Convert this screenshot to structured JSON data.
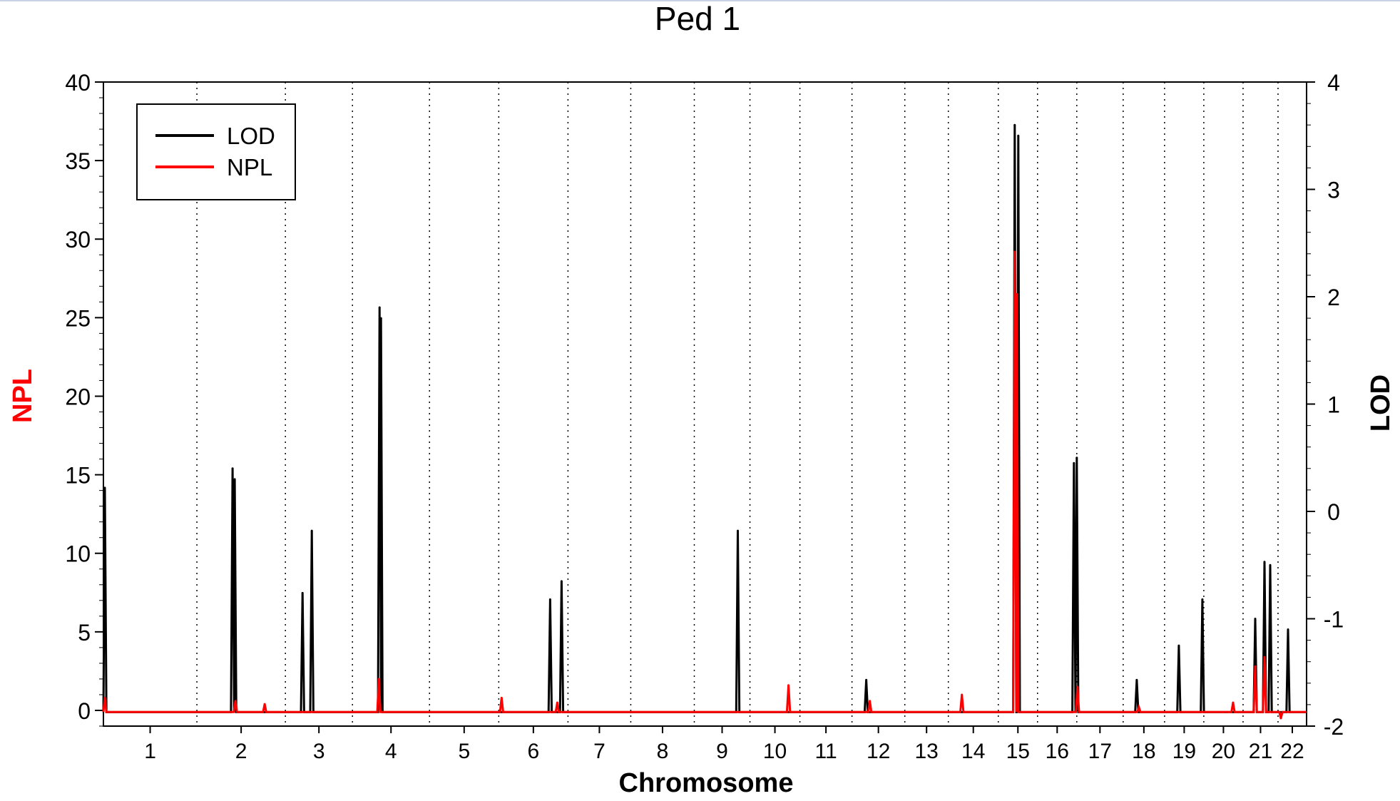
{
  "chart_data": {
    "type": "line",
    "title": "Ped 1",
    "xlabel": "Chromosome",
    "ylabel_left": "NPL",
    "ylabel_right": "LOD",
    "ylabel_left_color": "#ff0000",
    "ylabel_right_color": "#000000",
    "x_range": [
      0,
      1686
    ],
    "ylim_left": [
      -1,
      40
    ],
    "ylim_right": [
      -2,
      4
    ],
    "yticks_left": [
      0,
      5,
      10,
      15,
      20,
      25,
      30,
      35,
      40
    ],
    "yticks_right": [
      -2,
      -1,
      0,
      1,
      2,
      3,
      4
    ],
    "grid": "vertical dotted chromosome boundaries",
    "legend_position": "top-left",
    "chromosomes": [
      "1",
      "2",
      "3",
      "4",
      "5",
      "6",
      "7",
      "8",
      "9",
      "10",
      "11",
      "12",
      "13",
      "14",
      "15",
      "16",
      "17",
      "18",
      "19",
      "20",
      "21",
      "22"
    ],
    "chromosome_bounds": [
      0,
      131,
      255,
      349,
      457,
      554,
      651,
      739,
      828,
      906,
      976,
      1049,
      1123,
      1184,
      1254,
      1309,
      1364,
      1429,
      1487,
      1542,
      1597,
      1646,
      1686
    ],
    "series": [
      {
        "name": "LOD",
        "axis": "right",
        "color": "#000000",
        "baseline": -1.87,
        "peaks": [
          {
            "x": 2,
            "y": 0.22
          },
          {
            "x": 181,
            "y": 0.4
          },
          {
            "x": 184,
            "y": 0.3
          },
          {
            "x": 279,
            "y": -0.76
          },
          {
            "x": 292,
            "y": -0.18
          },
          {
            "x": 387,
            "y": 1.9
          },
          {
            "x": 389,
            "y": 1.8
          },
          {
            "x": 626,
            "y": -0.82
          },
          {
            "x": 642,
            "y": -0.65
          },
          {
            "x": 889,
            "y": -0.18
          },
          {
            "x": 1069,
            "y": -1.57
          },
          {
            "x": 1277,
            "y": 3.6
          },
          {
            "x": 1282,
            "y": 3.5
          },
          {
            "x": 1360,
            "y": 0.45
          },
          {
            "x": 1364,
            "y": 0.5
          },
          {
            "x": 1448,
            "y": -1.57
          },
          {
            "x": 1507,
            "y": -1.25
          },
          {
            "x": 1540,
            "y": -0.82
          },
          {
            "x": 1614,
            "y": -1.0
          },
          {
            "x": 1627,
            "y": -0.47
          },
          {
            "x": 1635,
            "y": -0.5
          },
          {
            "x": 1660,
            "y": -1.1
          }
        ]
      },
      {
        "name": "NPL",
        "axis": "left",
        "color": "#ff0000",
        "baseline": -0.1,
        "peaks": [
          {
            "x": 2,
            "y": 0.8
          },
          {
            "x": 185,
            "y": 0.6
          },
          {
            "x": 226,
            "y": 0.4
          },
          {
            "x": 386,
            "y": 2.0
          },
          {
            "x": 558,
            "y": 0.8
          },
          {
            "x": 636,
            "y": 0.5
          },
          {
            "x": 960,
            "y": 1.6
          },
          {
            "x": 1074,
            "y": 0.6
          },
          {
            "x": 1203,
            "y": 1.0
          },
          {
            "x": 1277,
            "y": 29.2
          },
          {
            "x": 1280,
            "y": 26.5
          },
          {
            "x": 1365,
            "y": 1.5
          },
          {
            "x": 1451,
            "y": 0.2
          },
          {
            "x": 1583,
            "y": 0.5
          },
          {
            "x": 1614,
            "y": 2.8
          },
          {
            "x": 1627,
            "y": 3.4
          },
          {
            "x": 1650,
            "y": -0.5
          }
        ]
      }
    ]
  }
}
